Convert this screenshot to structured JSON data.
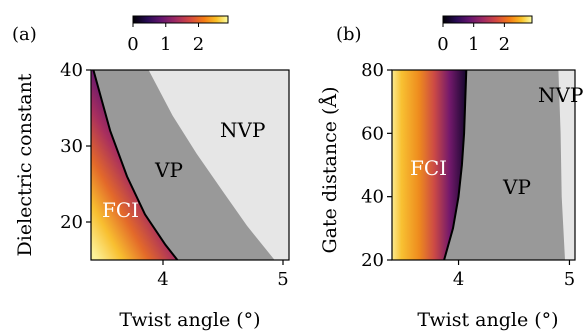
{
  "chart_data": [
    {
      "panel_label": "(a)",
      "type": "heatmap",
      "xlabel": "Twist angle (°)",
      "ylabel": "Dielectric constant",
      "xlim": [
        3.4,
        5.05
      ],
      "ylim": [
        15,
        40
      ],
      "xticks": [
        4,
        5
      ],
      "yticks": [
        20,
        30,
        40
      ],
      "colorbar": {
        "ticks": [
          0,
          1,
          2
        ],
        "range": [
          0,
          2.9
        ],
        "colormap": "inferno"
      },
      "regions": [
        {
          "label": "FCI",
          "color": "#e8a23a"
        },
        {
          "label": "VP",
          "color": "#999999"
        },
        {
          "label": "NVP",
          "color": "#e6e6e6"
        }
      ],
      "boundaries": {
        "fci_vp": [
          [
            3.42,
            40
          ],
          [
            3.56,
            32
          ],
          [
            3.7,
            26
          ],
          [
            3.85,
            21
          ],
          [
            4.02,
            17
          ],
          [
            4.12,
            15
          ]
        ],
        "vp_nvp": [
          [
            3.88,
            40
          ],
          [
            4.08,
            34
          ],
          [
            4.28,
            29
          ],
          [
            4.5,
            24
          ],
          [
            4.7,
            19.5
          ],
          [
            4.93,
            15
          ]
        ]
      }
    },
    {
      "panel_label": "(b)",
      "type": "heatmap",
      "xlabel": "Twist angle (°)",
      "ylabel": "Gate distance (Å)",
      "xlim": [
        3.4,
        5.05
      ],
      "ylim": [
        20,
        80
      ],
      "xticks": [
        4,
        5
      ],
      "yticks": [
        20,
        40,
        60,
        80
      ],
      "colorbar": {
        "ticks": [
          0,
          1,
          2
        ],
        "range": [
          0,
          2.9
        ],
        "colormap": "inferno"
      },
      "regions": [
        {
          "label": "FCI",
          "color": "#f6d24a"
        },
        {
          "label": "VP",
          "color": "#999999"
        },
        {
          "label": "NVP",
          "color": "#e6e6e6"
        }
      ],
      "boundaries": {
        "fci_vp": [
          [
            4.07,
            80
          ],
          [
            4.06,
            70
          ],
          [
            4.05,
            60
          ],
          [
            4.03,
            50
          ],
          [
            4.0,
            40
          ],
          [
            3.95,
            30
          ],
          [
            3.87,
            20
          ]
        ],
        "vp_nvp": [
          [
            4.9,
            80
          ],
          [
            4.92,
            60
          ],
          [
            4.93,
            40
          ],
          [
            4.96,
            20
          ]
        ]
      }
    }
  ]
}
